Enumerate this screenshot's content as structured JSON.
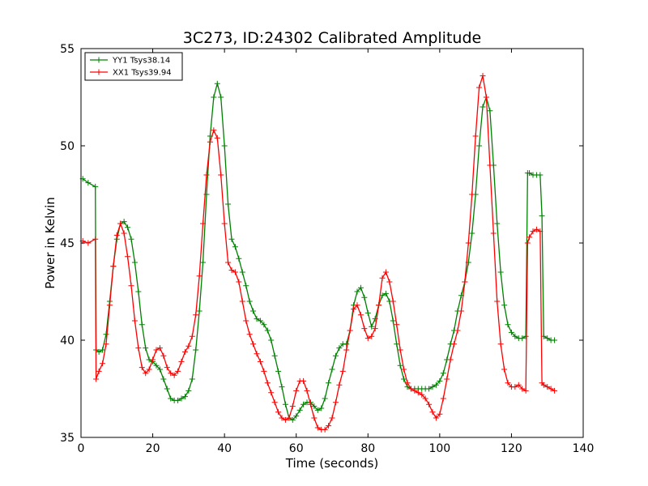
{
  "chart_data": {
    "type": "line",
    "title": "3C273, ID:24302 Calibrated Amplitude",
    "xlabel": "Time (seconds)",
    "ylabel": "Power in Kelvin",
    "xlim": [
      0,
      140
    ],
    "ylim": [
      35,
      55
    ],
    "xticks": [
      0,
      20,
      40,
      60,
      80,
      100,
      120,
      140
    ],
    "yticks": [
      35,
      40,
      45,
      50,
      55
    ],
    "grid": false,
    "legend_position": "top-left",
    "marker": "plus",
    "series": [
      {
        "name": "YY1 Tsys38.14",
        "color": "#008000",
        "x": [
          0.5,
          2,
          4,
          4.2,
          5,
          6,
          7,
          8,
          9,
          10,
          11,
          12,
          13,
          14,
          15,
          16,
          17,
          18,
          19,
          20,
          21,
          22,
          23,
          24,
          25,
          26,
          27,
          28,
          29,
          30,
          31,
          32,
          33,
          34,
          35,
          36,
          37,
          38,
          39,
          40,
          41,
          42,
          43,
          44,
          45,
          46,
          47,
          48,
          49,
          50,
          51,
          52,
          53,
          54,
          55,
          56,
          57,
          58,
          59,
          60,
          61,
          62,
          63,
          64,
          65,
          66,
          67,
          68,
          69,
          70,
          71,
          72,
          73,
          74,
          75,
          76,
          77,
          78,
          79,
          80,
          81,
          82,
          83,
          84,
          85,
          86,
          87,
          88,
          89,
          90,
          91,
          92,
          93,
          94,
          95,
          96,
          97,
          98,
          99,
          100,
          101,
          102,
          103,
          104,
          105,
          106,
          107,
          108,
          109,
          110,
          111,
          112,
          113,
          114,
          115,
          116,
          117,
          118,
          119,
          120,
          121,
          122,
          123,
          124,
          124.5,
          125,
          126,
          127,
          128,
          128.5,
          129,
          130,
          131,
          132
        ],
        "y": [
          48.3,
          48.1,
          47.9,
          39.5,
          39.4,
          39.5,
          40.3,
          42.0,
          43.8,
          45.2,
          46.0,
          46.1,
          45.8,
          45.2,
          44.0,
          42.5,
          40.8,
          39.6,
          39.0,
          38.9,
          38.7,
          38.5,
          38.0,
          37.5,
          37.0,
          36.9,
          36.9,
          37.0,
          37.1,
          37.4,
          38.0,
          39.5,
          41.5,
          44.0,
          47.5,
          50.5,
          52.5,
          53.2,
          52.5,
          50.0,
          47.0,
          45.2,
          44.8,
          44.2,
          43.5,
          42.8,
          42.0,
          41.5,
          41.1,
          41.0,
          40.8,
          40.5,
          40.0,
          39.2,
          38.4,
          37.6,
          36.7,
          36.0,
          35.9,
          36.1,
          36.4,
          36.7,
          36.8,
          36.8,
          36.6,
          36.4,
          36.5,
          37.0,
          37.8,
          38.5,
          39.2,
          39.6,
          39.8,
          39.8,
          40.5,
          41.8,
          42.5,
          42.7,
          42.2,
          41.4,
          40.7,
          41.1,
          41.8,
          42.3,
          42.4,
          42.0,
          41.0,
          39.8,
          38.7,
          38.0,
          37.6,
          37.5,
          37.5,
          37.5,
          37.5,
          37.5,
          37.5,
          37.6,
          37.7,
          37.9,
          38.3,
          39.0,
          39.8,
          40.5,
          41.5,
          42.3,
          43.0,
          44.0,
          45.5,
          47.5,
          50.0,
          52.0,
          52.5,
          51.8,
          49.0,
          46.0,
          43.5,
          41.8,
          40.8,
          40.4,
          40.2,
          40.1,
          40.1,
          40.2,
          48.6,
          48.6,
          48.5,
          48.5,
          48.5,
          46.4,
          40.2,
          40.1,
          40.0,
          40.0
        ]
      },
      {
        "name": "XX1 Tsys39.94",
        "color": "#ff0000",
        "x": [
          0.5,
          2,
          4,
          4.2,
          5,
          6,
          7,
          8,
          9,
          10,
          11,
          12,
          13,
          14,
          15,
          16,
          17,
          18,
          19,
          20,
          21,
          22,
          23,
          24,
          25,
          26,
          27,
          28,
          29,
          30,
          31,
          32,
          33,
          34,
          35,
          36,
          37,
          38,
          39,
          40,
          41,
          42,
          43,
          44,
          45,
          46,
          47,
          48,
          49,
          50,
          51,
          52,
          53,
          54,
          55,
          56,
          57,
          58,
          59,
          60,
          61,
          62,
          63,
          64,
          65,
          66,
          67,
          68,
          69,
          70,
          71,
          72,
          73,
          74,
          75,
          76,
          77,
          78,
          79,
          80,
          81,
          82,
          83,
          84,
          85,
          86,
          87,
          88,
          89,
          90,
          91,
          92,
          93,
          94,
          95,
          96,
          97,
          98,
          99,
          100,
          101,
          102,
          103,
          104,
          105,
          106,
          107,
          108,
          109,
          110,
          111,
          112,
          113,
          114,
          115,
          116,
          117,
          118,
          119,
          120,
          121,
          122,
          123,
          124,
          124.5,
          125,
          126,
          127,
          128,
          128.5,
          129,
          130,
          131,
          132
        ],
        "y": [
          45.1,
          45.0,
          45.2,
          38.0,
          38.4,
          38.8,
          39.8,
          41.8,
          43.8,
          45.4,
          46.0,
          45.5,
          44.3,
          42.8,
          41.0,
          39.6,
          38.6,
          38.3,
          38.5,
          39.0,
          39.5,
          39.6,
          39.2,
          38.6,
          38.3,
          38.2,
          38.4,
          38.9,
          39.4,
          39.7,
          40.2,
          41.3,
          43.3,
          46.0,
          48.5,
          50.2,
          50.8,
          50.4,
          48.5,
          46.0,
          44.0,
          43.6,
          43.5,
          43.0,
          42.0,
          41.0,
          40.3,
          39.8,
          39.3,
          38.9,
          38.4,
          37.8,
          37.3,
          36.8,
          36.3,
          36.0,
          35.9,
          36.0,
          36.6,
          37.4,
          37.9,
          37.9,
          37.4,
          36.7,
          36.0,
          35.5,
          35.4,
          35.4,
          35.6,
          36.0,
          36.8,
          37.7,
          38.4,
          39.5,
          40.5,
          41.6,
          41.8,
          41.3,
          40.6,
          40.1,
          40.2,
          40.6,
          41.8,
          43.2,
          43.5,
          43.0,
          42.0,
          40.8,
          39.5,
          38.5,
          37.8,
          37.5,
          37.4,
          37.3,
          37.2,
          37.0,
          36.7,
          36.3,
          36.0,
          36.2,
          37.0,
          38.0,
          39.0,
          39.8,
          40.5,
          41.5,
          43.0,
          45.0,
          47.5,
          50.5,
          53.0,
          53.6,
          52.5,
          49.0,
          45.5,
          42.0,
          39.8,
          38.5,
          37.8,
          37.6,
          37.6,
          37.7,
          37.5,
          37.4,
          45.0,
          45.3,
          45.6,
          45.7,
          45.6,
          37.8,
          37.7,
          37.6,
          37.5,
          37.4
        ]
      }
    ]
  }
}
